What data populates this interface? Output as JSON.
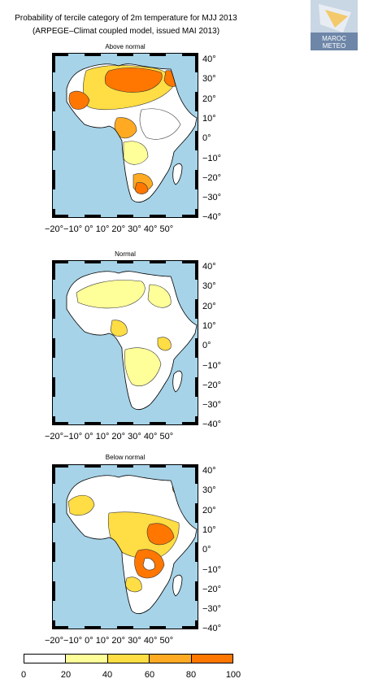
{
  "title": {
    "line1": "Probability of tercile category of 2m temperature for MJJ 2013",
    "line2": "(ARPEGE–Climat coupled model, issued MAI 2013)"
  },
  "logo": {
    "text_top": "MAROC",
    "text_bottom": "METEO"
  },
  "panels": [
    {
      "title": "Above normal"
    },
    {
      "title": "Normal"
    },
    {
      "title": "Below normal"
    }
  ],
  "lat_labels": [
    "40°",
    "30°",
    "20°",
    "10°",
    "0°",
    "−10°",
    "−20°",
    "−30°",
    "−40°"
  ],
  "lon_labels": "−20°−10° 0°  10° 20° 30° 40° 50°",
  "colorbar": {
    "ticks": [
      "0",
      "20",
      "40",
      "60",
      "80",
      "100"
    ],
    "colors": [
      "#ffffff",
      "#ffff99",
      "#ffdd44",
      "#ffaa22",
      "#ff7700"
    ]
  },
  "colors": {
    "ocean": "#a6d3e8",
    "land": "#ffffff"
  }
}
